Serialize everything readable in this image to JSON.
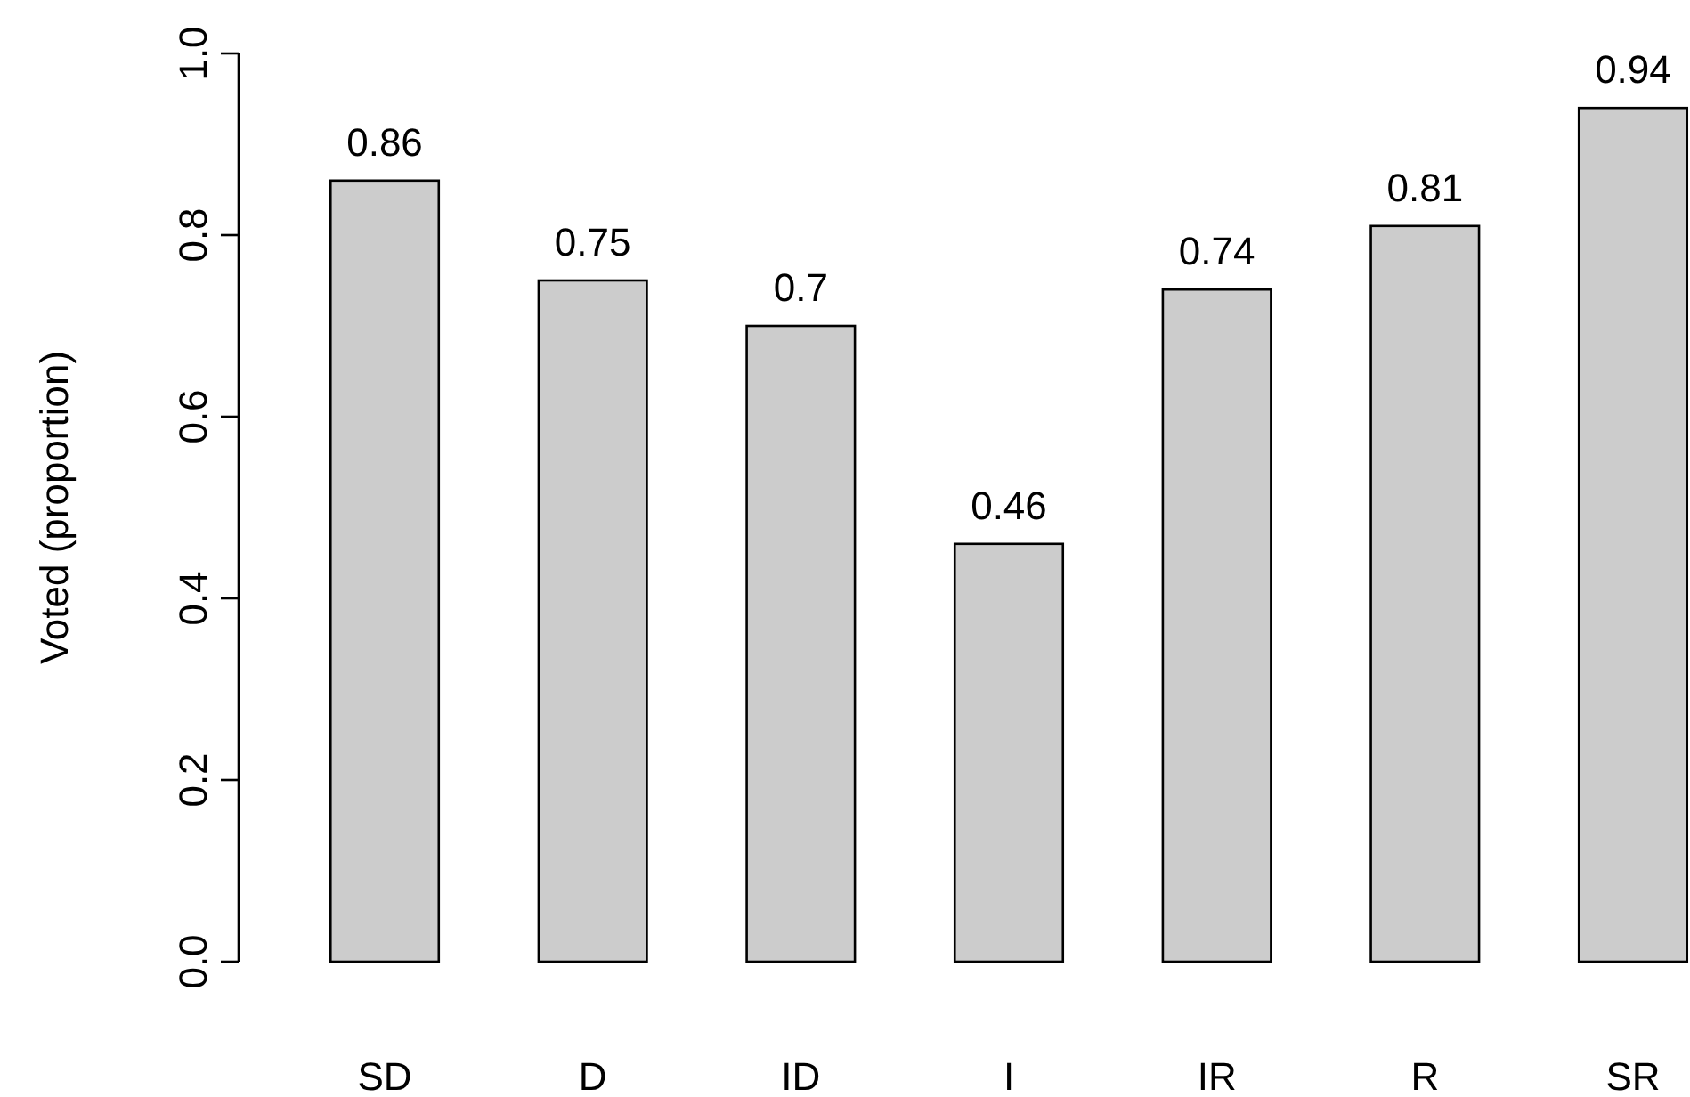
{
  "chart_data": {
    "type": "bar",
    "ylabel": "Voted (proportion)",
    "categories": [
      "SD",
      "D",
      "ID",
      "I",
      "IR",
      "R",
      "SR"
    ],
    "values": [
      0.86,
      0.75,
      0.7,
      0.46,
      0.74,
      0.81,
      0.94
    ],
    "color": "#cccccc",
    "ylim": [
      0,
      1
    ],
    "yticks": [
      {
        "value": 0,
        "label": "0.0"
      },
      0.2,
      0.4,
      0.6,
      0.8,
      {
        "value": 1,
        "label": "1.0"
      }
    ],
    "data_labels": true
  }
}
